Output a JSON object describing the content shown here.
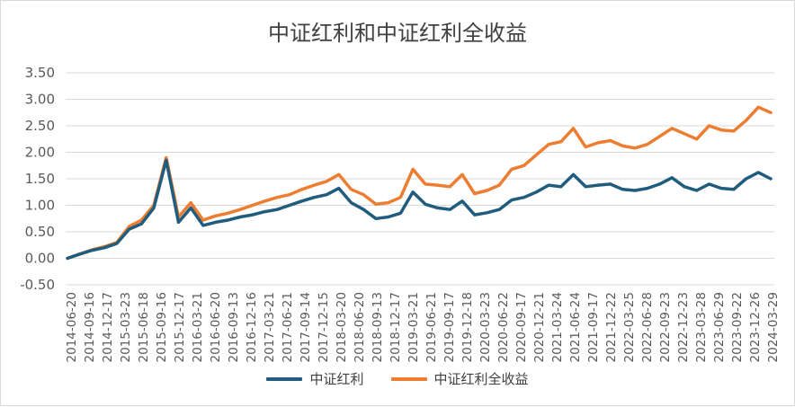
{
  "chart_data": {
    "type": "line",
    "title": "中证红利和中证红利全收益",
    "xlabel": "",
    "ylabel": "",
    "ylim": [
      -0.5,
      3.5
    ],
    "yticks": [
      "-0.50",
      "0.00",
      "0.50",
      "1.00",
      "1.50",
      "2.00",
      "2.50",
      "3.00",
      "3.50"
    ],
    "grid": true,
    "legend_position": "bottom",
    "x_tick_labels": [
      "2014-06-20",
      "2014-09-16",
      "2014-12-17",
      "2015-03-23",
      "2015-06-18",
      "2015-09-16",
      "2015-12-17",
      "2016-03-21",
      "2016-06-20",
      "2016-09-13",
      "2016-12-16",
      "2017-03-21",
      "2017-06-21",
      "2017-09-14",
      "2017-12-15",
      "2018-03-20",
      "2018-06-20",
      "2018-09-13",
      "2018-12-17",
      "2019-03-21",
      "2019-06-21",
      "2019-09-17",
      "2019-12-18",
      "2020-03-23",
      "2020-06-22",
      "2020-09-17",
      "2020-12-21",
      "2021-03-24",
      "2021-06-24",
      "2021-09-17",
      "2021-12-22",
      "2022-03-25",
      "2022-06-28",
      "2022-09-23",
      "2022-12-23",
      "2023-03-28",
      "2023-06-29",
      "2023-09-22",
      "2023-12-26",
      "2024-03-29"
    ],
    "series": [
      {
        "name": "中证红利",
        "color": "#1f5c7d",
        "values": [
          0.0,
          0.08,
          0.15,
          0.2,
          0.28,
          0.55,
          0.65,
          0.95,
          1.85,
          0.68,
          0.95,
          0.62,
          0.68,
          0.72,
          0.78,
          0.82,
          0.88,
          0.92,
          1.0,
          1.08,
          1.15,
          1.2,
          1.32,
          1.05,
          0.92,
          0.75,
          0.78,
          0.85,
          1.25,
          1.02,
          0.95,
          0.92,
          1.08,
          0.82,
          0.86,
          0.92,
          1.1,
          1.15,
          1.25,
          1.38,
          1.35,
          1.58,
          1.35,
          1.38,
          1.4,
          1.3,
          1.28,
          1.32,
          1.4,
          1.52,
          1.35,
          1.28,
          1.4,
          1.32,
          1.3,
          1.5,
          1.62,
          1.5
        ]
      },
      {
        "name": "中证红利全收益",
        "color": "#ed7d31",
        "values": [
          0.0,
          0.08,
          0.16,
          0.22,
          0.3,
          0.6,
          0.72,
          1.0,
          1.9,
          0.78,
          1.05,
          0.72,
          0.8,
          0.85,
          0.92,
          1.0,
          1.08,
          1.15,
          1.2,
          1.3,
          1.38,
          1.45,
          1.58,
          1.3,
          1.2,
          1.02,
          1.05,
          1.15,
          1.68,
          1.4,
          1.38,
          1.35,
          1.58,
          1.22,
          1.28,
          1.38,
          1.68,
          1.75,
          1.95,
          2.15,
          2.2,
          2.45,
          2.1,
          2.18,
          2.22,
          2.12,
          2.08,
          2.15,
          2.3,
          2.45,
          2.35,
          2.25,
          2.5,
          2.42,
          2.4,
          2.6,
          2.85,
          2.75
        ]
      }
    ]
  }
}
